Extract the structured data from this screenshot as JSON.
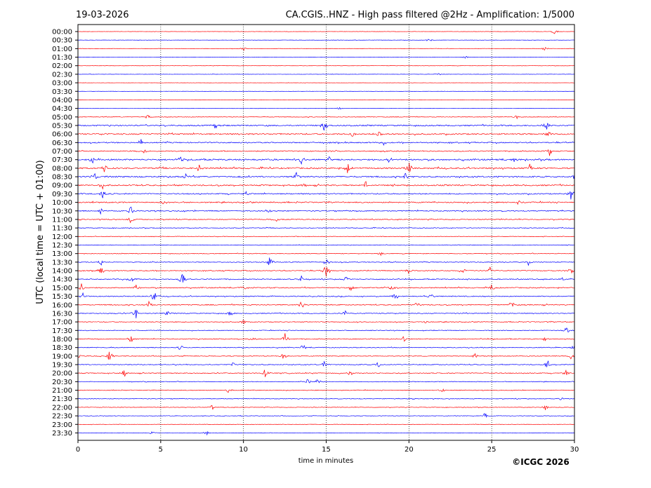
{
  "header": {
    "date": "19-03-2026",
    "title": "CA.CGIS..HNZ - High pass filtered @2Hz - Amplification: 1/5000"
  },
  "footer": {
    "copyright": "©ICGC 2026"
  },
  "chart_data": {
    "type": "line",
    "xlabel": "time in minutes",
    "ylabel": "UTC (local time = UTC + 01:00)",
    "xlim": [
      0,
      30
    ],
    "x_ticks": [
      "0",
      "5",
      "10",
      "15",
      "20",
      "25",
      "30"
    ],
    "vertical_grid_minutes": [
      5,
      10,
      15,
      20,
      25
    ],
    "grid": "dotted vertical lines",
    "trace_colors": [
      "#ff0000",
      "#0000ff"
    ],
    "row_labels": [
      "00:00",
      "00:30",
      "01:00",
      "01:30",
      "02:00",
      "02:30",
      "03:00",
      "03:30",
      "04:00",
      "04:30",
      "05:00",
      "05:30",
      "06:00",
      "06:30",
      "07:00",
      "07:30",
      "08:00",
      "08:30",
      "09:00",
      "09:30",
      "10:00",
      "10:30",
      "11:00",
      "11:30",
      "12:00",
      "12:30",
      "13:00",
      "13:30",
      "14:00",
      "14:30",
      "15:00",
      "15:30",
      "16:00",
      "16:30",
      "17:00",
      "17:30",
      "18:00",
      "18:30",
      "19:00",
      "19:30",
      "20:00",
      "20:30",
      "21:00",
      "21:30",
      "22:00",
      "22:30",
      "23:00",
      "23:30"
    ],
    "noise_level": [
      0.2,
      0.2,
      0.25,
      0.2,
      0.2,
      0.2,
      0.15,
      0.15,
      0.2,
      0.2,
      0.45,
      0.9,
      0.9,
      0.8,
      0.7,
      1.0,
      1.0,
      1.0,
      0.9,
      0.8,
      0.8,
      0.75,
      0.6,
      0.5,
      0.4,
      0.4,
      0.45,
      0.55,
      0.6,
      0.65,
      0.7,
      0.65,
      0.7,
      0.6,
      0.55,
      0.5,
      0.6,
      0.55,
      0.5,
      0.6,
      0.6,
      0.45,
      0.45,
      0.45,
      0.4,
      0.35,
      0.3,
      0.3
    ],
    "events": [
      {
        "row": 0,
        "minute": 28.8,
        "amp": 0.4
      },
      {
        "row": 1,
        "minute": 21.2,
        "amp": 0.3
      },
      {
        "row": 2,
        "minute": 9.6,
        "amp": 0.3
      },
      {
        "row": 2,
        "minute": 10.0,
        "amp": 0.3
      },
      {
        "row": 2,
        "minute": 28.2,
        "amp": 0.3
      },
      {
        "row": 3,
        "minute": 23.4,
        "amp": 0.2
      },
      {
        "row": 5,
        "minute": 21.8,
        "amp": 0.2
      },
      {
        "row": 9,
        "minute": 15.8,
        "amp": 0.2
      },
      {
        "row": 10,
        "minute": 4.2,
        "amp": 0.3
      },
      {
        "row": 10,
        "minute": 26.5,
        "amp": 0.3
      },
      {
        "row": 11,
        "minute": 8.3,
        "amp": 0.4
      },
      {
        "row": 11,
        "minute": 14.9,
        "amp": 0.9
      },
      {
        "row": 11,
        "minute": 28.3,
        "amp": 0.7
      },
      {
        "row": 12,
        "minute": 16.6,
        "amp": 0.5
      },
      {
        "row": 12,
        "minute": 18.2,
        "amp": 0.4
      },
      {
        "row": 12,
        "minute": 28.4,
        "amp": 0.4
      },
      {
        "row": 13,
        "minute": 3.8,
        "amp": 0.5
      },
      {
        "row": 13,
        "minute": 18.5,
        "amp": 0.5
      },
      {
        "row": 14,
        "minute": 4.0,
        "amp": 0.4
      },
      {
        "row": 14,
        "minute": 28.5,
        "amp": 0.6
      },
      {
        "row": 15,
        "minute": 0.9,
        "amp": 0.5
      },
      {
        "row": 15,
        "minute": 6.2,
        "amp": 0.6
      },
      {
        "row": 15,
        "minute": 13.5,
        "amp": 0.9
      },
      {
        "row": 15,
        "minute": 15.2,
        "amp": 0.6
      },
      {
        "row": 15,
        "minute": 18.8,
        "amp": 0.5
      },
      {
        "row": 15,
        "minute": 26.4,
        "amp": 0.4
      },
      {
        "row": 16,
        "minute": 1.6,
        "amp": 0.9
      },
      {
        "row": 16,
        "minute": 7.3,
        "amp": 0.5
      },
      {
        "row": 16,
        "minute": 16.3,
        "amp": 0.7
      },
      {
        "row": 16,
        "minute": 20.0,
        "amp": 0.8
      },
      {
        "row": 16,
        "minute": 27.3,
        "amp": 0.6
      },
      {
        "row": 17,
        "minute": 1.0,
        "amp": 0.6
      },
      {
        "row": 17,
        "minute": 6.5,
        "amp": 0.6
      },
      {
        "row": 17,
        "minute": 13.2,
        "amp": 0.7
      },
      {
        "row": 17,
        "minute": 19.8,
        "amp": 0.6
      },
      {
        "row": 17,
        "minute": 30.0,
        "amp": 0.5
      },
      {
        "row": 18,
        "minute": 1.5,
        "amp": 0.6
      },
      {
        "row": 18,
        "minute": 13.7,
        "amp": 0.4
      },
      {
        "row": 18,
        "minute": 17.4,
        "amp": 0.5
      },
      {
        "row": 19,
        "minute": 1.5,
        "amp": 0.8
      },
      {
        "row": 19,
        "minute": 10.2,
        "amp": 0.4
      },
      {
        "row": 19,
        "minute": 29.8,
        "amp": 0.9
      },
      {
        "row": 20,
        "minute": 5.2,
        "amp": 0.4
      },
      {
        "row": 20,
        "minute": 26.6,
        "amp": 0.4
      },
      {
        "row": 21,
        "minute": 1.4,
        "amp": 0.5
      },
      {
        "row": 21,
        "minute": 3.2,
        "amp": 0.7
      },
      {
        "row": 21,
        "minute": 11.5,
        "amp": 0.4
      },
      {
        "row": 22,
        "minute": 3.2,
        "amp": 0.6
      },
      {
        "row": 22,
        "minute": 12.0,
        "amp": 0.3
      },
      {
        "row": 26,
        "minute": 18.3,
        "amp": 0.3
      },
      {
        "row": 27,
        "minute": 1.4,
        "amp": 0.5
      },
      {
        "row": 27,
        "minute": 11.6,
        "amp": 0.8
      },
      {
        "row": 27,
        "minute": 15.0,
        "amp": 0.5
      },
      {
        "row": 27,
        "minute": 27.2,
        "amp": 0.5
      },
      {
        "row": 28,
        "minute": 1.4,
        "amp": 0.7
      },
      {
        "row": 28,
        "minute": 15.0,
        "amp": 1.0
      },
      {
        "row": 28,
        "minute": 20.0,
        "amp": 0.5
      },
      {
        "row": 28,
        "minute": 23.2,
        "amp": 0.8
      },
      {
        "row": 28,
        "minute": 24.9,
        "amp": 0.5
      },
      {
        "row": 28,
        "minute": 29.9,
        "amp": 0.6
      },
      {
        "row": 29,
        "minute": 3.2,
        "amp": 0.6
      },
      {
        "row": 29,
        "minute": 6.3,
        "amp": 1.0
      },
      {
        "row": 29,
        "minute": 13.5,
        "amp": 0.5
      },
      {
        "row": 29,
        "minute": 16.2,
        "amp": 0.5
      },
      {
        "row": 29,
        "minute": 29.3,
        "amp": 0.4
      },
      {
        "row": 30,
        "minute": 0.2,
        "amp": 0.7
      },
      {
        "row": 30,
        "minute": 3.5,
        "amp": 0.5
      },
      {
        "row": 30,
        "minute": 10.0,
        "amp": 0.5
      },
      {
        "row": 30,
        "minute": 16.5,
        "amp": 0.7
      },
      {
        "row": 30,
        "minute": 19.0,
        "amp": 0.6
      },
      {
        "row": 30,
        "minute": 25.0,
        "amp": 0.5
      },
      {
        "row": 31,
        "minute": 0.3,
        "amp": 0.4
      },
      {
        "row": 31,
        "minute": 4.6,
        "amp": 0.8
      },
      {
        "row": 31,
        "minute": 19.2,
        "amp": 0.5
      },
      {
        "row": 31,
        "minute": 21.3,
        "amp": 0.5
      },
      {
        "row": 32,
        "minute": 4.3,
        "amp": 0.7
      },
      {
        "row": 32,
        "minute": 13.5,
        "amp": 0.6
      },
      {
        "row": 32,
        "minute": 20.5,
        "amp": 0.6
      },
      {
        "row": 32,
        "minute": 26.2,
        "amp": 0.5
      },
      {
        "row": 33,
        "minute": 3.5,
        "amp": 0.8
      },
      {
        "row": 33,
        "minute": 5.4,
        "amp": 0.4
      },
      {
        "row": 33,
        "minute": 9.2,
        "amp": 0.4
      },
      {
        "row": 33,
        "minute": 16.1,
        "amp": 0.5
      },
      {
        "row": 34,
        "minute": 10.0,
        "amp": 0.5
      },
      {
        "row": 34,
        "minute": 21.0,
        "amp": 0.3
      },
      {
        "row": 35,
        "minute": 29.5,
        "amp": 0.6
      },
      {
        "row": 36,
        "minute": 3.2,
        "amp": 0.6
      },
      {
        "row": 36,
        "minute": 10.5,
        "amp": 0.4
      },
      {
        "row": 36,
        "minute": 12.5,
        "amp": 0.9
      },
      {
        "row": 36,
        "minute": 19.7,
        "amp": 0.5
      },
      {
        "row": 36,
        "minute": 28.2,
        "amp": 0.4
      },
      {
        "row": 37,
        "minute": 6.2,
        "amp": 0.5
      },
      {
        "row": 37,
        "minute": 13.6,
        "amp": 0.6
      },
      {
        "row": 37,
        "minute": 30.0,
        "amp": 0.6
      },
      {
        "row": 38,
        "minute": 0.0,
        "amp": 0.6
      },
      {
        "row": 38,
        "minute": 1.9,
        "amp": 0.9
      },
      {
        "row": 38,
        "minute": 12.4,
        "amp": 0.5
      },
      {
        "row": 38,
        "minute": 24.0,
        "amp": 0.4
      },
      {
        "row": 38,
        "minute": 29.8,
        "amp": 0.4
      },
      {
        "row": 39,
        "minute": 9.4,
        "amp": 0.4
      },
      {
        "row": 39,
        "minute": 14.9,
        "amp": 0.6
      },
      {
        "row": 39,
        "minute": 18.1,
        "amp": 0.6
      },
      {
        "row": 39,
        "minute": 28.4,
        "amp": 0.6
      },
      {
        "row": 40,
        "minute": 2.8,
        "amp": 0.5
      },
      {
        "row": 40,
        "minute": 11.3,
        "amp": 0.6
      },
      {
        "row": 40,
        "minute": 16.4,
        "amp": 0.7
      },
      {
        "row": 40,
        "minute": 29.5,
        "amp": 0.5
      },
      {
        "row": 41,
        "minute": 13.9,
        "amp": 0.5
      },
      {
        "row": 41,
        "minute": 14.5,
        "amp": 0.4
      },
      {
        "row": 42,
        "minute": 9.1,
        "amp": 0.4
      },
      {
        "row": 42,
        "minute": 22.0,
        "amp": 0.3
      },
      {
        "row": 43,
        "minute": 29.2,
        "amp": 0.3
      },
      {
        "row": 44,
        "minute": 8.1,
        "amp": 0.4
      },
      {
        "row": 44,
        "minute": 28.2,
        "amp": 0.5
      },
      {
        "row": 45,
        "minute": 24.6,
        "amp": 0.5
      },
      {
        "row": 47,
        "minute": 4.5,
        "amp": 0.3
      },
      {
        "row": 47,
        "minute": 7.8,
        "amp": 0.3
      }
    ]
  }
}
